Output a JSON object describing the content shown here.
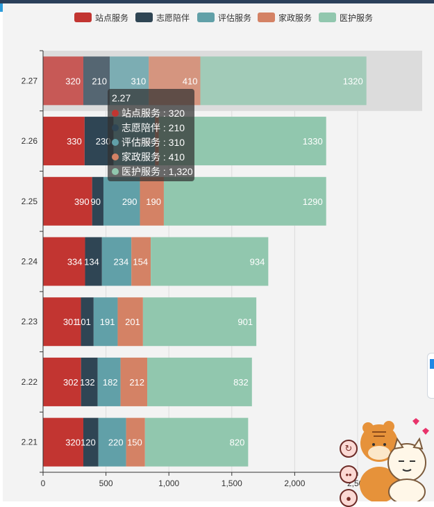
{
  "chart_data": {
    "type": "bar",
    "orientation": "horizontal",
    "stacked": true,
    "categories": [
      "2.21",
      "2.22",
      "2.23",
      "2.24",
      "2.25",
      "2.26",
      "2.27"
    ],
    "series": [
      {
        "name": "站点服务",
        "color": "#c23531",
        "values": [
          320,
          302,
          301,
          334,
          390,
          330,
          320
        ]
      },
      {
        "name": "志愿陪伴",
        "color": "#2f4554",
        "values": [
          120,
          132,
          101,
          134,
          90,
          230,
          210
        ]
      },
      {
        "name": "评估服务",
        "color": "#61a0a8",
        "values": [
          220,
          182,
          191,
          234,
          290,
          330,
          310
        ]
      },
      {
        "name": "家政服务",
        "color": "#d48265",
        "values": [
          150,
          212,
          201,
          154,
          190,
          30,
          410
        ]
      },
      {
        "name": "医护服务",
        "color": "#91c7ae",
        "values": [
          820,
          832,
          901,
          934,
          1290,
          1330,
          1320
        ]
      }
    ],
    "xlim": [
      0,
      2500
    ],
    "xticks": [
      "0",
      "500",
      "1,000",
      "1,500",
      "2,000",
      "2,500"
    ],
    "grid": true,
    "legend_position": "top",
    "highlighted_category": "2.27"
  },
  "tooltip": {
    "title": "2.27",
    "rows": [
      {
        "label": "站点服务 : 320",
        "color": "#c23531"
      },
      {
        "label": "志愿陪伴 : 210",
        "color": "#2f4554"
      },
      {
        "label": "评估服务 : 310",
        "color": "#61a0a8"
      },
      {
        "label": "家政服务 : 410",
        "color": "#d48265"
      },
      {
        "label": "医护服务 : 1,320",
        "color": "#91c7ae"
      }
    ]
  },
  "overlay": {
    "float_buttons": [
      {
        "icon": "refresh-icon",
        "glyph": "↻"
      },
      {
        "icon": "face-icon",
        "glyph": "••"
      },
      {
        "icon": "cookie-icon",
        "glyph": "●"
      }
    ],
    "mascot": "tiger-cat-mascot"
  }
}
